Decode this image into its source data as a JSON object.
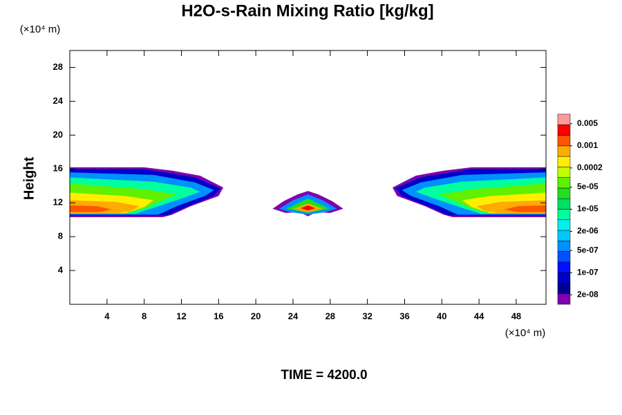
{
  "chart_data": {
    "type": "contour",
    "title": "H2O-s-Rain Mixing Ratio [kg/kg]",
    "y_label": "Height",
    "y_unit": "(×10⁴ m)",
    "x_unit": "(×10⁴ m)",
    "footer": "TIME = 4200.0",
    "xlim": [
      0,
      51.2
    ],
    "ylim": [
      0,
      30
    ],
    "xticks": [
      4,
      8,
      12,
      16,
      20,
      24,
      28,
      32,
      36,
      40,
      44,
      48
    ],
    "yticks": [
      4,
      8,
      12,
      16,
      20,
      24,
      28
    ],
    "colorbar": {
      "log": true,
      "clim": [
        1e-08,
        0.01
      ],
      "colors": [
        "#8000b0",
        "#000090",
        "#0000c8",
        "#0010ff",
        "#0050ff",
        "#0090ff",
        "#00c8ff",
        "#00f0f0",
        "#00ff9e",
        "#00e060",
        "#20e020",
        "#60f000",
        "#c0ff00",
        "#ffee00",
        "#ffaa00",
        "#ff5500",
        "#ff0000",
        "#ff9999"
      ],
      "ticks": [
        {
          "value": 2e-08,
          "label": "2e-08"
        },
        {
          "value": 1e-07,
          "label": "1e-07"
        },
        {
          "value": 5e-07,
          "label": "5e-07"
        },
        {
          "value": 2e-06,
          "label": "2e-06"
        },
        {
          "value": 1e-05,
          "label": "1e-05"
        },
        {
          "value": 5e-05,
          "label": "5e-05"
        },
        0.0002,
        0.001,
        0.005
      ]
    },
    "regions": [
      {
        "level": 0,
        "x": [
          0,
          8,
          11,
          14,
          16.5,
          16,
          13,
          11,
          10,
          0
        ],
        "y": [
          16.2,
          16.2,
          15.8,
          15.2,
          13.8,
          12.8,
          11.6,
          10.6,
          10.3,
          10.3
        ]
      },
      {
        "level": 2,
        "x": [
          0,
          8,
          13.5,
          16.2,
          15.5,
          12.5,
          10.5,
          0
        ],
        "y": [
          16.0,
          16.0,
          15.0,
          13.7,
          12.8,
          11.5,
          10.5,
          10.5
        ]
      },
      {
        "level": 5,
        "x": [
          0,
          9,
          13.5,
          15.5,
          14.5,
          11.5,
          9.5,
          0
        ],
        "y": [
          15.6,
          15.3,
          14.4,
          13.5,
          12.8,
          11.6,
          10.6,
          10.6
        ]
      },
      {
        "level": 8,
        "x": [
          0,
          9,
          13,
          14,
          12,
          9,
          7,
          0
        ],
        "y": [
          15.0,
          14.5,
          13.8,
          13.3,
          12.5,
          11.4,
          10.7,
          10.7
        ]
      },
      {
        "level": 11,
        "x": [
          0,
          8,
          11.5,
          10,
          8,
          6,
          0
        ],
        "y": [
          14.3,
          13.6,
          13.0,
          12.3,
          11.3,
          10.7,
          10.7
        ]
      },
      {
        "level": 13,
        "x": [
          0,
          6,
          9,
          8,
          6,
          0
        ],
        "y": [
          13.2,
          12.8,
          12.3,
          11.5,
          10.8,
          10.8
        ]
      },
      {
        "level": 14,
        "x": [
          0,
          5,
          7.5,
          6.5,
          5,
          0
        ],
        "y": [
          12.3,
          12.1,
          11.6,
          11.0,
          10.8,
          10.8
        ]
      },
      {
        "level": 15,
        "x": [
          0,
          3,
          4.5,
          3,
          0
        ],
        "y": [
          11.7,
          11.6,
          11.2,
          10.9,
          10.9
        ]
      },
      {
        "level": 0,
        "x": [
          51.2,
          43.2,
          40.2,
          37.2,
          34.7,
          35.2,
          38.2,
          40.2,
          41.2,
          51.2
        ],
        "y": [
          16.2,
          16.2,
          15.8,
          15.2,
          13.8,
          12.8,
          11.6,
          10.6,
          10.3,
          10.3
        ]
      },
      {
        "level": 2,
        "x": [
          51.2,
          43.2,
          37.7,
          35,
          35.7,
          38.7,
          40.7,
          51.2
        ],
        "y": [
          16.0,
          16.0,
          15.0,
          13.7,
          12.8,
          11.5,
          10.5,
          10.5
        ]
      },
      {
        "level": 5,
        "x": [
          51.2,
          42.2,
          37.7,
          35.7,
          36.7,
          39.7,
          41.7,
          51.2
        ],
        "y": [
          15.6,
          15.3,
          14.4,
          13.5,
          12.8,
          11.6,
          10.6,
          10.6
        ]
      },
      {
        "level": 8,
        "x": [
          51.2,
          42.2,
          38.2,
          37.2,
          39.2,
          42.2,
          44.2,
          51.2
        ],
        "y": [
          15.0,
          14.5,
          13.8,
          13.3,
          12.5,
          11.4,
          10.7,
          10.7
        ]
      },
      {
        "level": 11,
        "x": [
          51.2,
          43.2,
          39.7,
          41.2,
          43.2,
          45.2,
          51.2
        ],
        "y": [
          14.3,
          13.6,
          13.0,
          12.3,
          11.3,
          10.7,
          10.7
        ]
      },
      {
        "level": 13,
        "x": [
          51.2,
          45.2,
          42.2,
          43.2,
          45.2,
          51.2
        ],
        "y": [
          13.2,
          12.8,
          12.3,
          11.5,
          10.8,
          10.8
        ]
      },
      {
        "level": 14,
        "x": [
          51.2,
          46.2,
          43.7,
          44.7,
          46.2,
          51.2
        ],
        "y": [
          12.3,
          12.1,
          11.6,
          11.0,
          10.8,
          10.8
        ]
      },
      {
        "level": 15,
        "x": [
          51.2,
          48.2,
          46.7,
          48.2,
          51.2
        ],
        "y": [
          11.7,
          11.6,
          11.2,
          10.9,
          10.9
        ]
      },
      {
        "level": 0,
        "x": [
          21.8,
          23,
          24.5,
          25.6,
          26.7,
          28.2,
          29.4,
          28,
          26.5,
          25.6,
          24.7,
          23.2
        ],
        "y": [
          11.3,
          12.2,
          13.0,
          13.4,
          13.0,
          12.2,
          11.3,
          10.8,
          10.9,
          10.4,
          10.9,
          10.8
        ]
      },
      {
        "level": 5,
        "x": [
          22.5,
          24,
          25.6,
          27.2,
          28.7,
          27.5,
          25.6,
          23.7
        ],
        "y": [
          11.3,
          12.3,
          13.0,
          12.3,
          11.3,
          10.9,
          10.6,
          10.9
        ]
      },
      {
        "level": 10,
        "x": [
          23.3,
          25,
          25.6,
          26.2,
          27.9,
          26.5,
          25.6,
          24.7
        ],
        "y": [
          11.3,
          12.2,
          12.5,
          12.2,
          11.3,
          11.0,
          10.8,
          11.0
        ]
      },
      {
        "level": 14,
        "x": [
          24,
          25.6,
          27.2,
          25.6
        ],
        "y": [
          11.3,
          11.9,
          11.3,
          10.9
        ]
      },
      {
        "level": 16,
        "x": [
          24.8,
          25.6,
          26.4,
          25.6
        ],
        "y": [
          11.35,
          11.7,
          11.35,
          11.1
        ]
      }
    ]
  }
}
